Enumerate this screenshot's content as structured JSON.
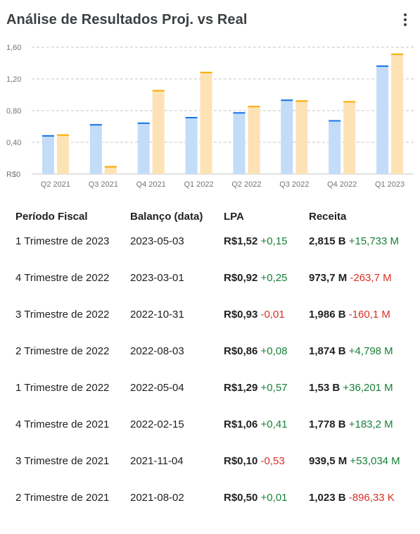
{
  "header": {
    "title": "Análise de Resultados Proj. vs Real"
  },
  "colors": {
    "projected": "#c3dcf8",
    "projected_top": "#1a73e8",
    "actual": "#fde2b5",
    "actual_top": "#f9ab00",
    "grid": "#c6c6c6",
    "positive": "#188038",
    "negative": "#d93025"
  },
  "chart_data": {
    "type": "bar",
    "categories": [
      "Q2 2021",
      "Q3 2021",
      "Q4 2021",
      "Q1 2022",
      "Q2 2022",
      "Q3 2022",
      "Q4 2022",
      "Q1 2023"
    ],
    "series": [
      {
        "values": [
          0.49,
          0.63,
          0.65,
          0.72,
          0.78,
          0.94,
          0.68,
          1.37
        ]
      },
      {
        "values": [
          0.5,
          0.1,
          1.06,
          1.29,
          0.86,
          0.93,
          0.92,
          1.52
        ]
      }
    ],
    "ylim": [
      0,
      1.6
    ],
    "yticks": [
      0,
      0.4,
      0.8,
      1.2,
      1.6
    ],
    "ytick_labels": [
      "R$0",
      "0,40",
      "0,80",
      "1,20",
      "1,60"
    ],
    "grid": true
  },
  "table": {
    "headers": [
      "Período Fiscal",
      "Balanço (data)",
      "LPA",
      "Receita"
    ],
    "rows": [
      {
        "period": "1 Trimestre de 2023",
        "date": "2023-05-03",
        "eps": "R$1,52",
        "eps_diff": "+0,15",
        "eps_sign": "pos",
        "rev": "2,815 B",
        "rev_diff": "+15,733 M",
        "rev_sign": "pos"
      },
      {
        "period": "4 Trimestre de 2022",
        "date": "2023-03-01",
        "eps": "R$0,92",
        "eps_diff": "+0,25",
        "eps_sign": "pos",
        "rev": "973,7 M",
        "rev_diff": "-263,7 M",
        "rev_sign": "neg"
      },
      {
        "period": "3 Trimestre de 2022",
        "date": "2022-10-31",
        "eps": "R$0,93",
        "eps_diff": "-0,01",
        "eps_sign": "neg",
        "rev": "1,986 B",
        "rev_diff": "-160,1 M",
        "rev_sign": "neg"
      },
      {
        "period": "2 Trimestre de 2022",
        "date": "2022-08-03",
        "eps": "R$0,86",
        "eps_diff": "+0,08",
        "eps_sign": "pos",
        "rev": "1,874 B",
        "rev_diff": "+4,798 M",
        "rev_sign": "pos"
      },
      {
        "period": "1 Trimestre de 2022",
        "date": "2022-05-04",
        "eps": "R$1,29",
        "eps_diff": "+0,57",
        "eps_sign": "pos",
        "rev": "1,53 B",
        "rev_diff": "+36,201 M",
        "rev_sign": "pos"
      },
      {
        "period": "4 Trimestre de 2021",
        "date": "2022-02-15",
        "eps": "R$1,06",
        "eps_diff": "+0,41",
        "eps_sign": "pos",
        "rev": "1,778 B",
        "rev_diff": "+183,2 M",
        "rev_sign": "pos"
      },
      {
        "period": "3 Trimestre de 2021",
        "date": "2021-11-04",
        "eps": "R$0,10",
        "eps_diff": "-0,53",
        "eps_sign": "neg",
        "rev": "939,5 M",
        "rev_diff": "+53,034 M",
        "rev_sign": "pos"
      },
      {
        "period": "2 Trimestre de 2021",
        "date": "2021-08-02",
        "eps": "R$0,50",
        "eps_diff": "+0,01",
        "eps_sign": "pos",
        "rev": "1,023 B",
        "rev_diff": "-896,33 K",
        "rev_sign": "neg"
      }
    ]
  }
}
